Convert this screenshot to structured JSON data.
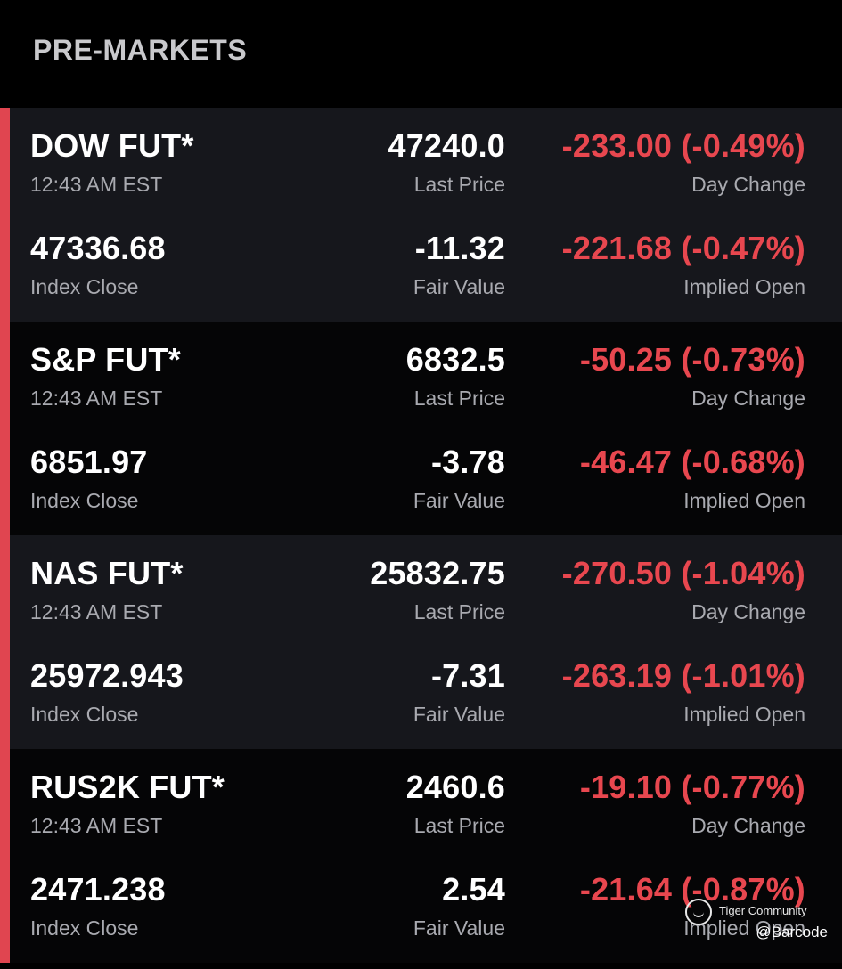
{
  "header": {
    "title": "PRE-MARKETS"
  },
  "colors": {
    "background": "#000000",
    "card_dark": "#16171c",
    "card_black": "#050506",
    "negative": "#e8474f",
    "accent_bar": "#e04550",
    "label": "#a9aab0"
  },
  "markets": [
    {
      "name": "DOW FUT*",
      "time": "12:43 AM EST",
      "last_price": "47240.0",
      "last_price_label": "Last Price",
      "day_change": "-233.00 (-0.49%)",
      "day_change_label": "Day Change",
      "index_close": "47336.68",
      "index_close_label": "Index Close",
      "fair_value": "-11.32",
      "fair_value_label": "Fair Value",
      "implied_open": "-221.68 (-0.47%)",
      "implied_open_label": "Implied Open"
    },
    {
      "name": "S&P FUT*",
      "time": "12:43 AM EST",
      "last_price": "6832.5",
      "last_price_label": "Last Price",
      "day_change": "-50.25 (-0.73%)",
      "day_change_label": "Day Change",
      "index_close": "6851.97",
      "index_close_label": "Index Close",
      "fair_value": "-3.78",
      "fair_value_label": "Fair Value",
      "implied_open": "-46.47 (-0.68%)",
      "implied_open_label": "Implied Open"
    },
    {
      "name": "NAS FUT*",
      "time": "12:43 AM EST",
      "last_price": "25832.75",
      "last_price_label": "Last Price",
      "day_change": "-270.50 (-1.04%)",
      "day_change_label": "Day Change",
      "index_close": "25972.943",
      "index_close_label": "Index Close",
      "fair_value": "-7.31",
      "fair_value_label": "Fair Value",
      "implied_open": "-263.19 (-1.01%)",
      "implied_open_label": "Implied Open"
    },
    {
      "name": "RUS2K FUT*",
      "time": "12:43 AM EST",
      "last_price": "2460.6",
      "last_price_label": "Last Price",
      "day_change": "-19.10 (-0.77%)",
      "day_change_label": "Day Change",
      "index_close": "2471.238",
      "index_close_label": "Index Close",
      "fair_value": "2.54",
      "fair_value_label": "Fair Value",
      "implied_open": "-21.64 (-0.87%)",
      "implied_open_label": "Implied Open"
    }
  ],
  "watermark": {
    "brand": "Tiger Community",
    "handle": "@Barcode",
    "logo_icon": "tiger-community-logo-icon"
  }
}
